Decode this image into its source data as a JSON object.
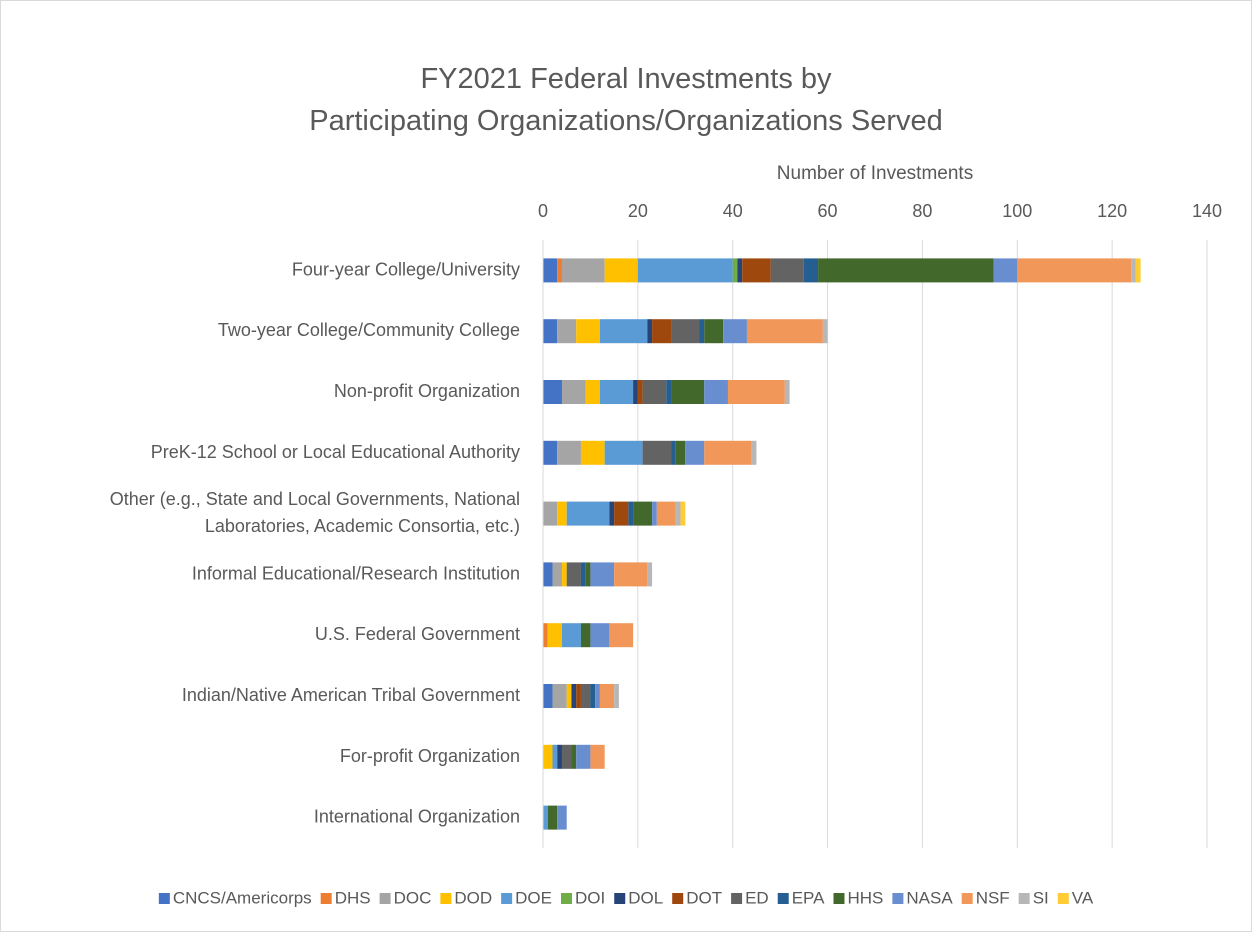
{
  "chart_data": {
    "type": "bar",
    "orientation": "horizontal",
    "stacked": true,
    "title": "FY2021 Federal Investments by\nParticipating Organizations/Organizations Served",
    "x_label": "Number of Investments",
    "categories": [
      "Four-year College/University",
      "Two-year College/Community College",
      "Non-profit Organization",
      "PreK-12 School or Local Educational Authority",
      "Other (e.g., State and Local Governments, National\nLaboratories, Academic Consortia, etc.)",
      "Informal Educational/Research Institution",
      "U.S. Federal Government",
      "Indian/Native American Tribal Government",
      "For-profit Organization",
      "International Organization"
    ],
    "xlim": [
      0,
      140
    ],
    "xticks": [
      0,
      20,
      40,
      60,
      80,
      100,
      120,
      140
    ],
    "grid": true,
    "legend": "bottom",
    "series": [
      {
        "name": "CNCS/Americorps",
        "color": "#4472c4",
        "values": [
          3,
          3,
          4,
          3,
          0,
          2,
          0,
          2,
          0,
          0
        ]
      },
      {
        "name": "DHS",
        "color": "#ed7d31",
        "values": [
          1,
          0,
          0,
          0,
          0,
          0,
          1,
          0,
          0,
          0
        ]
      },
      {
        "name": "DOC",
        "color": "#a5a5a5",
        "values": [
          9,
          4,
          5,
          5,
          3,
          2,
          0,
          3,
          0,
          0
        ]
      },
      {
        "name": "DOD",
        "color": "#ffc000",
        "values": [
          7,
          5,
          3,
          5,
          2,
          1,
          3,
          1,
          2,
          0
        ]
      },
      {
        "name": "DOE",
        "color": "#5b9bd5",
        "values": [
          20,
          10,
          7,
          8,
          9,
          0,
          4,
          0,
          1,
          1
        ]
      },
      {
        "name": "DOI",
        "color": "#70ad47",
        "values": [
          1,
          0,
          0,
          0,
          0,
          0,
          0,
          0,
          0,
          0
        ]
      },
      {
        "name": "DOL",
        "color": "#264478",
        "values": [
          1,
          1,
          1,
          0,
          1,
          0,
          0,
          1,
          1,
          0
        ]
      },
      {
        "name": "DOT",
        "color": "#9e480e",
        "values": [
          6,
          4,
          1,
          0,
          3,
          0,
          0,
          1,
          0,
          0
        ]
      },
      {
        "name": "ED",
        "color": "#636363",
        "values": [
          7,
          6,
          5,
          6,
          0,
          3,
          0,
          2,
          2,
          0
        ]
      },
      {
        "name": "EPA",
        "color": "#255e91",
        "values": [
          3,
          1,
          1,
          1,
          1,
          1,
          0,
          1,
          0,
          0
        ]
      },
      {
        "name": "HHS",
        "color": "#43682b",
        "values": [
          37,
          4,
          7,
          2,
          4,
          1,
          2,
          0,
          1,
          2
        ]
      },
      {
        "name": "NASA",
        "color": "#698ed0",
        "values": [
          5,
          5,
          5,
          4,
          1,
          5,
          4,
          1,
          3,
          2
        ]
      },
      {
        "name": "NSF",
        "color": "#f1975a",
        "values": [
          24,
          16,
          12,
          10,
          4,
          7,
          5,
          3,
          3,
          0
        ]
      },
      {
        "name": "SI",
        "color": "#b7b7b7",
        "values": [
          1,
          1,
          1,
          1,
          1,
          1,
          0,
          1,
          0,
          0
        ]
      },
      {
        "name": "VA",
        "color": "#ffcd33",
        "values": [
          1,
          0,
          0,
          0,
          1,
          0,
          0,
          0,
          0,
          0
        ]
      }
    ]
  }
}
